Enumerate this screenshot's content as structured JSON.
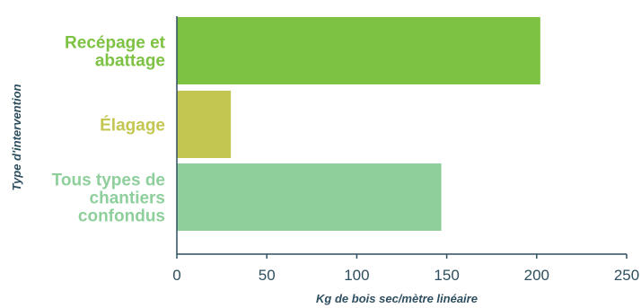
{
  "chart_data": {
    "type": "bar",
    "orientation": "horizontal",
    "categories": [
      [
        "Recépage et",
        "abattage"
      ],
      [
        "Élagage"
      ],
      [
        "Tous types de",
        "chantiers",
        "confondus"
      ]
    ],
    "values": [
      202,
      30,
      147
    ],
    "colors": [
      "#7dc242",
      "#c3c752",
      "#8ecf9c"
    ],
    "xlabel": "Kg de bois sec/mètre linéaire",
    "ylabel": "Type d'intervention",
    "xlim": [
      0,
      250
    ],
    "xticks": [
      "0",
      "50",
      "100",
      "150",
      "200",
      "250"
    ],
    "grid": false,
    "axis_color": "#2e4f5f"
  }
}
